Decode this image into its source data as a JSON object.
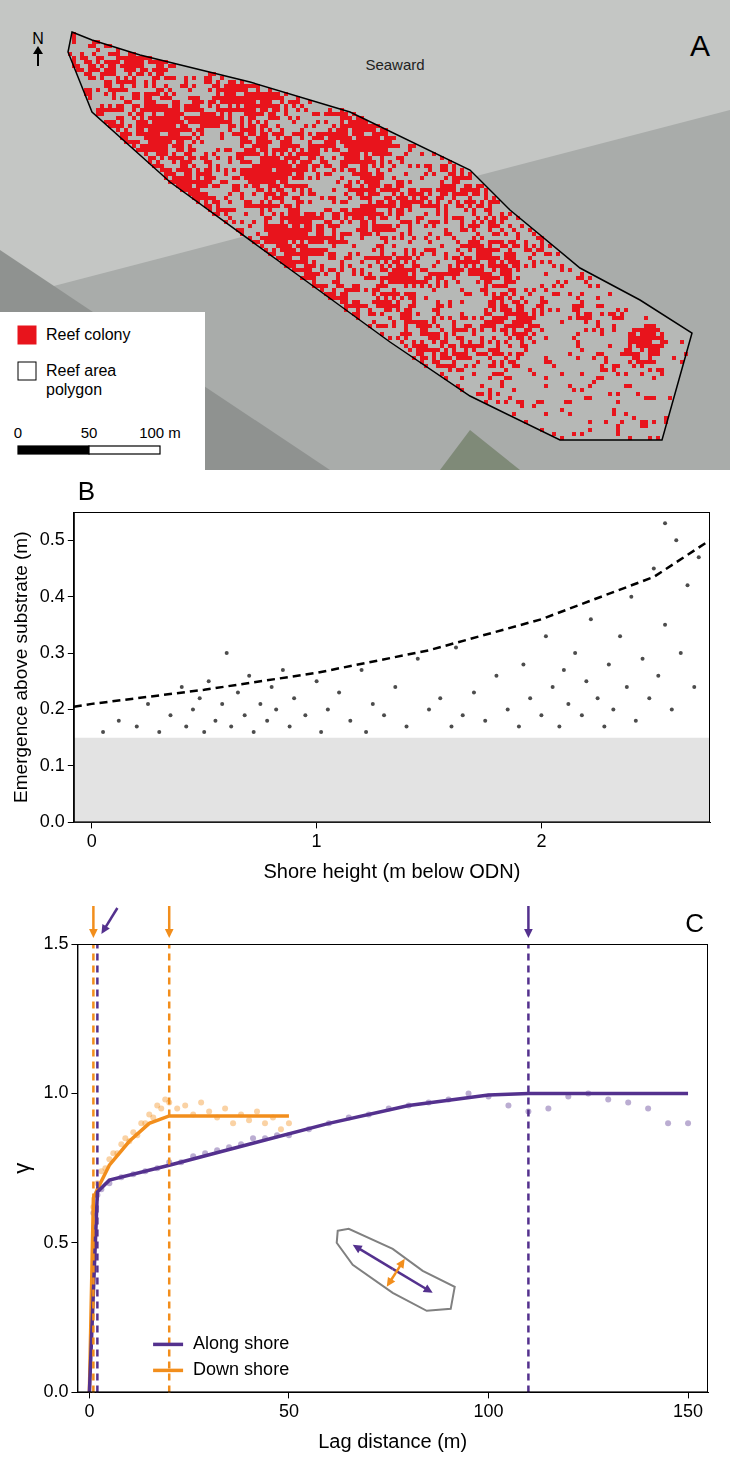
{
  "chart_data": [
    {
      "type": "map",
      "panel": "A",
      "north": "N",
      "labels": [
        "Seaward"
      ],
      "legend_items": [
        {
          "name": "Reef colony",
          "color": "#e8141c"
        },
        {
          "name": "Reef area polygon",
          "color": "#ffffff"
        }
      ],
      "scale_bar": {
        "ticks": [
          0,
          50,
          {
            "value": 100,
            "label": "100 m"
          }
        ]
      }
    },
    {
      "type": "scatter",
      "panel": "B",
      "xlabel": "Shore height (m below ODN)",
      "ylabel": "Emergence above substrate (m)",
      "xlim": [
        -0.08,
        2.75
      ],
      "xticks": [
        0,
        1,
        2
      ],
      "ylim": [
        0,
        0.55
      ],
      "yticks": [
        {
          "value": 0,
          "label": "0.0"
        },
        0.1,
        0.2,
        0.3,
        0.4,
        0.5
      ],
      "grid": false,
      "bands": [
        {
          "from": 0,
          "to": 0.15,
          "color": "#e3e3e3"
        }
      ],
      "series": [
        {
          "type": "scatter",
          "color": "#000000",
          "marker": "circle",
          "x": [
            0.05,
            0.12,
            0.2,
            0.25,
            0.3,
            0.35,
            0.4,
            0.42,
            0.45,
            0.48,
            0.5,
            0.52,
            0.55,
            0.58,
            0.6,
            0.62,
            0.65,
            0.68,
            0.7,
            0.72,
            0.75,
            0.78,
            0.8,
            0.82,
            0.85,
            0.88,
            0.9,
            0.95,
            1.0,
            1.02,
            1.05,
            1.1,
            1.15,
            1.2,
            1.22,
            1.25,
            1.3,
            1.35,
            1.4,
            1.45,
            1.5,
            1.55,
            1.6,
            1.62,
            1.65,
            1.7,
            1.75,
            1.8,
            1.85,
            1.9,
            1.92,
            1.95,
            2.0,
            2.02,
            2.05,
            2.08,
            2.1,
            2.12,
            2.15,
            2.18,
            2.2,
            2.22,
            2.25,
            2.28,
            2.3,
            2.32,
            2.35,
            2.38,
            2.4,
            2.42,
            2.45,
            2.48,
            2.5,
            2.52,
            2.55,
            2.58,
            2.6,
            2.62,
            2.65,
            2.68,
            2.7,
            2.55
          ],
          "values": [
            0.16,
            0.18,
            0.17,
            0.21,
            0.16,
            0.19,
            0.24,
            0.17,
            0.2,
            0.22,
            0.16,
            0.25,
            0.18,
            0.21,
            0.3,
            0.17,
            0.23,
            0.19,
            0.26,
            0.16,
            0.21,
            0.18,
            0.24,
            0.2,
            0.27,
            0.17,
            0.22,
            0.19,
            0.25,
            0.16,
            0.2,
            0.23,
            0.18,
            0.27,
            0.16,
            0.21,
            0.19,
            0.24,
            0.17,
            0.29,
            0.2,
            0.22,
            0.17,
            0.31,
            0.19,
            0.23,
            0.18,
            0.26,
            0.2,
            0.17,
            0.28,
            0.22,
            0.19,
            0.33,
            0.24,
            0.17,
            0.27,
            0.21,
            0.3,
            0.19,
            0.25,
            0.36,
            0.22,
            0.17,
            0.28,
            0.2,
            0.33,
            0.24,
            0.4,
            0.18,
            0.29,
            0.22,
            0.45,
            0.26,
            0.35,
            0.2,
            0.5,
            0.3,
            0.42,
            0.24,
            0.47,
            0.53
          ]
        },
        {
          "type": "line",
          "color": "#000000",
          "line_style": "dashed",
          "x": [
            -0.08,
            0,
            0.5,
            1,
            1.5,
            2,
            2.5,
            2.75
          ],
          "values": [
            0.205,
            0.21,
            0.235,
            0.265,
            0.305,
            0.36,
            0.435,
            0.5
          ]
        }
      ]
    },
    {
      "type": "line",
      "panel": "C",
      "xlabel": "Lag distance (m)",
      "ylabel": "γ",
      "xlim": [
        -3,
        155
      ],
      "xticks": [
        0,
        50,
        100,
        150
      ],
      "ylim": [
        0,
        1.5
      ],
      "yticks": [
        {
          "value": 0,
          "label": "0.0"
        },
        0.5,
        {
          "value": 1,
          "label": "1.0"
        },
        1.5
      ],
      "grid": false,
      "legend": "bottom left",
      "series": [
        {
          "name": "Along shore",
          "color": "#54318e",
          "x": [
            0,
            2,
            5,
            20,
            40,
            60,
            80,
            100,
            110,
            150
          ],
          "values": [
            0,
            0.67,
            0.71,
            0.76,
            0.83,
            0.9,
            0.96,
            0.995,
            1.0,
            1.0
          ],
          "points_x": [
            1,
            2,
            3,
            5,
            8,
            11,
            14,
            17,
            20,
            23,
            26,
            29,
            32,
            35,
            38,
            41,
            44,
            47,
            50,
            55,
            60,
            65,
            70,
            75,
            80,
            85,
            90,
            95,
            100,
            105,
            110,
            115,
            120,
            125,
            130,
            135,
            140,
            145,
            150
          ],
          "points_values": [
            0.6,
            0.66,
            0.68,
            0.7,
            0.72,
            0.73,
            0.74,
            0.75,
            0.77,
            0.77,
            0.79,
            0.8,
            0.81,
            0.82,
            0.83,
            0.85,
            0.85,
            0.86,
            0.86,
            0.88,
            0.9,
            0.92,
            0.93,
            0.95,
            0.96,
            0.97,
            0.98,
            1.0,
            0.99,
            0.96,
            0.94,
            0.95,
            0.99,
            1.0,
            0.98,
            0.97,
            0.95,
            0.9,
            0.9
          ],
          "ranges": [
            2,
            110
          ]
        },
        {
          "name": "Down shore",
          "color": "#f28e1c",
          "x": [
            0,
            1,
            2,
            5,
            10,
            15,
            20,
            50
          ],
          "values": [
            0,
            0.65,
            0.68,
            0.76,
            0.84,
            0.9,
            0.925,
            0.925
          ],
          "points_x": [
            1,
            2,
            3,
            4,
            5,
            6,
            7,
            8,
            9,
            10,
            11,
            12,
            13,
            14,
            15,
            16,
            17,
            18,
            19,
            20,
            22,
            24,
            26,
            28,
            30,
            32,
            34,
            36,
            38,
            40,
            42,
            44,
            46,
            48,
            50
          ],
          "points_values": [
            0.62,
            0.7,
            0.74,
            0.75,
            0.78,
            0.8,
            0.8,
            0.83,
            0.85,
            0.84,
            0.87,
            0.86,
            0.9,
            0.9,
            0.93,
            0.92,
            0.96,
            0.95,
            0.98,
            0.97,
            0.95,
            0.96,
            0.93,
            0.97,
            0.94,
            0.92,
            0.95,
            0.9,
            0.93,
            0.91,
            0.94,
            0.9,
            0.92,
            0.88,
            0.9
          ],
          "ranges": [
            1,
            20
          ]
        }
      ]
    }
  ]
}
